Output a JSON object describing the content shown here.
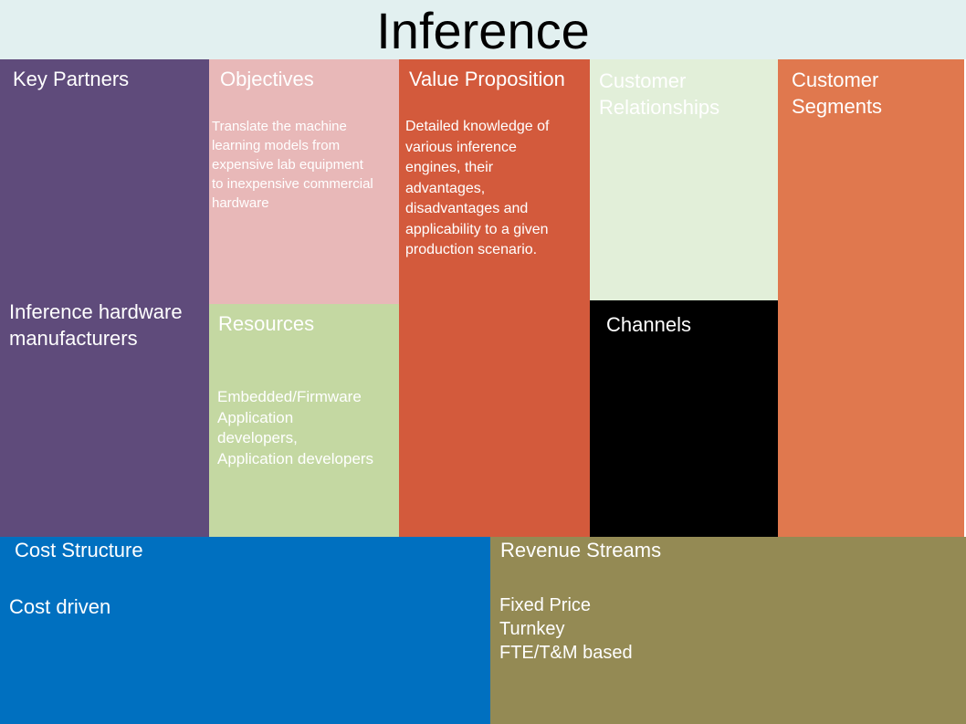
{
  "title": "Inference",
  "blocks": {
    "key_partners": {
      "heading": "Key Partners",
      "lines": [
        "Inference hardware",
        "manufacturers"
      ],
      "color": "#5f4b7b"
    },
    "objectives": {
      "heading": "Objectives",
      "lines": [
        "Translate the machine",
        "learning models from",
        "expensive lab equipment",
        "to inexpensive commercial",
        "hardware"
      ],
      "color": "#e8b8b8"
    },
    "resources": {
      "heading": "Resources",
      "lines": [
        "Embedded/Firmware",
        "Application",
        "developers,",
        "Application developers"
      ],
      "color": "#c4d8a2"
    },
    "value_proposition": {
      "heading": "Value Proposition",
      "lines": [
        "Detailed knowledge of",
        "various inference",
        "engines, their",
        "advantages,",
        "disadvantages and",
        "applicability to a given",
        "production scenario."
      ],
      "color": "#d35a3c"
    },
    "customer_relationships": {
      "heading": "Customer Relationships",
      "color": "#e2efd9"
    },
    "channels": {
      "heading": "Channels",
      "color": "#000000"
    },
    "customer_segments": {
      "heading": "Customer Segments",
      "color": "#e0784e"
    },
    "cost_structure": {
      "heading": "Cost Structure",
      "lines": [
        "Cost driven"
      ],
      "color": "#0070c0"
    },
    "revenue_streams": {
      "heading": "Revenue Streams",
      "lines": [
        "Fixed Price",
        "Turnkey",
        "FTE/T&M based"
      ],
      "color": "#948a54"
    }
  }
}
